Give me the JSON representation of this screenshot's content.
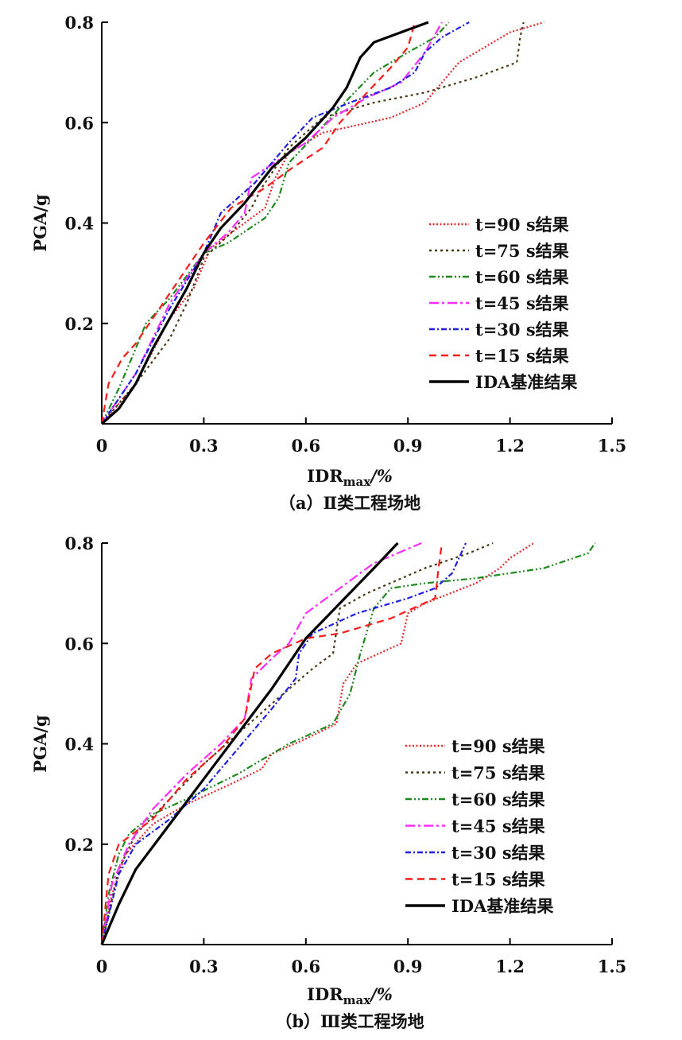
{
  "chart_data": [
    {
      "type": "line",
      "caption": "（a）Ⅱ类工程场地",
      "xlabel_parts": {
        "main": "IDR",
        "sub": "max",
        "unit": "/%"
      },
      "ylabel": "PGA/g",
      "xlim": [
        0,
        1.5
      ],
      "ylim": [
        0,
        0.8
      ],
      "xticks": [
        "0",
        "0.3",
        "0.6",
        "0.9",
        "1.2",
        "1.5"
      ],
      "yticks": [
        "0.2",
        "0.4",
        "0.6",
        "0.8"
      ],
      "grid": false,
      "legend": "right",
      "series": [
        {
          "name": "t=90 s结果",
          "color": "#e8262a",
          "style": "dotted",
          "x": [
            0,
            0.1,
            0.2,
            0.27,
            0.32,
            0.4,
            0.48,
            0.51,
            0.55,
            0.65,
            0.85,
            0.95,
            1.0,
            1.05,
            1.2,
            1.3
          ],
          "y": [
            0,
            0.08,
            0.21,
            0.27,
            0.35,
            0.39,
            0.43,
            0.49,
            0.54,
            0.58,
            0.61,
            0.64,
            0.68,
            0.72,
            0.78,
            0.8
          ]
        },
        {
          "name": "t=75 s结果",
          "color": "#4a3a1a",
          "style": "short-dash",
          "x": [
            0,
            0.1,
            0.2,
            0.25,
            0.3,
            0.38,
            0.44,
            0.47,
            0.55,
            0.65,
            0.8,
            0.95,
            1.1,
            1.22,
            1.23,
            1.24
          ],
          "y": [
            0,
            0.08,
            0.17,
            0.24,
            0.33,
            0.38,
            0.43,
            0.47,
            0.55,
            0.61,
            0.64,
            0.66,
            0.69,
            0.72,
            0.77,
            0.8
          ]
        },
        {
          "name": "t=60 s结果",
          "color": "#1e8a1e",
          "style": "dash-dot-dot",
          "x": [
            0,
            0.05,
            0.1,
            0.13,
            0.2,
            0.3,
            0.37,
            0.48,
            0.52,
            0.55,
            0.62,
            0.7,
            0.8,
            0.9,
            0.98,
            1.02
          ],
          "y": [
            0,
            0.07,
            0.15,
            0.2,
            0.25,
            0.34,
            0.36,
            0.41,
            0.45,
            0.52,
            0.57,
            0.63,
            0.7,
            0.74,
            0.77,
            0.8
          ]
        },
        {
          "name": "t=45 s结果",
          "color": "#ff2cff",
          "style": "long-dash-dot",
          "x": [
            0,
            0.1,
            0.2,
            0.3,
            0.37,
            0.42,
            0.44,
            0.53,
            0.6,
            0.68,
            0.78,
            0.88,
            0.95,
            1.0
          ],
          "y": [
            0,
            0.1,
            0.24,
            0.34,
            0.38,
            0.42,
            0.49,
            0.53,
            0.56,
            0.61,
            0.65,
            0.68,
            0.74,
            0.8
          ]
        },
        {
          "name": "t=30 s结果",
          "color": "#1f1fe6",
          "style": "dash-dot",
          "x": [
            0,
            0.1,
            0.2,
            0.3,
            0.35,
            0.45,
            0.55,
            0.62,
            0.73,
            0.85,
            0.92,
            0.95,
            1.0,
            1.08
          ],
          "y": [
            0,
            0.1,
            0.23,
            0.34,
            0.42,
            0.48,
            0.56,
            0.61,
            0.64,
            0.67,
            0.7,
            0.74,
            0.77,
            0.8
          ]
        },
        {
          "name": "t=15 s结果",
          "color": "#ff1a1a",
          "style": "dashed",
          "x": [
            0,
            0.02,
            0.06,
            0.1,
            0.2,
            0.3,
            0.38,
            0.48,
            0.56,
            0.65,
            0.7,
            0.78,
            0.85,
            0.9,
            0.92
          ],
          "y": [
            0,
            0.08,
            0.13,
            0.16,
            0.26,
            0.36,
            0.43,
            0.47,
            0.51,
            0.55,
            0.6,
            0.66,
            0.71,
            0.75,
            0.8
          ]
        },
        {
          "name": "IDA基准结果",
          "color": "#000000",
          "style": "solid",
          "x": [
            0,
            0.05,
            0.1,
            0.15,
            0.2,
            0.25,
            0.3,
            0.35,
            0.42,
            0.5,
            0.6,
            0.68,
            0.72,
            0.76,
            0.8,
            0.88,
            0.96
          ],
          "y": [
            0,
            0.03,
            0.08,
            0.15,
            0.21,
            0.27,
            0.34,
            0.39,
            0.44,
            0.51,
            0.57,
            0.63,
            0.67,
            0.73,
            0.76,
            0.78,
            0.8
          ]
        }
      ]
    },
    {
      "type": "line",
      "caption": "（b）Ⅲ类工程场地",
      "xlabel_parts": {
        "main": "IDR",
        "sub": "max",
        "unit": "/%"
      },
      "ylabel": "PGA/g",
      "xlim": [
        0,
        1.5
      ],
      "ylim": [
        0,
        0.8
      ],
      "xticks": [
        "0",
        "0.3",
        "0.6",
        "0.9",
        "1.2",
        "1.5"
      ],
      "yticks": [
        "0.2",
        "0.4",
        "0.6",
        "0.8"
      ],
      "grid": false,
      "legend": "right",
      "series": [
        {
          "name": "t=90 s结果",
          "color": "#e8262a",
          "style": "dotted",
          "x": [
            0,
            0.03,
            0.07,
            0.15,
            0.25,
            0.38,
            0.47,
            0.5,
            0.6,
            0.69,
            0.71,
            0.75,
            0.88,
            0.9,
            0.95,
            1.1,
            1.17,
            1.2,
            1.27
          ],
          "y": [
            0,
            0.1,
            0.18,
            0.24,
            0.28,
            0.32,
            0.35,
            0.38,
            0.41,
            0.44,
            0.52,
            0.56,
            0.6,
            0.66,
            0.68,
            0.72,
            0.75,
            0.77,
            0.8
          ]
        },
        {
          "name": "t=75 s结果",
          "color": "#4a3a1a",
          "style": "short-dash",
          "x": [
            0,
            0.05,
            0.1,
            0.2,
            0.3,
            0.4,
            0.5,
            0.62,
            0.68,
            0.7,
            0.78,
            0.95,
            1.08,
            1.15
          ],
          "y": [
            0,
            0.15,
            0.22,
            0.29,
            0.36,
            0.42,
            0.48,
            0.55,
            0.58,
            0.67,
            0.7,
            0.75,
            0.78,
            0.8
          ]
        },
        {
          "name": "t=60 s结果",
          "color": "#1e8a1e",
          "style": "dash-dot-dot",
          "x": [
            0,
            0.02,
            0.05,
            0.08,
            0.15,
            0.25,
            0.4,
            0.55,
            0.68,
            0.73,
            0.76,
            0.8,
            0.85,
            0.95,
            1.1,
            1.3,
            1.43,
            1.45
          ],
          "y": [
            0,
            0.1,
            0.18,
            0.22,
            0.26,
            0.29,
            0.34,
            0.4,
            0.44,
            0.5,
            0.58,
            0.67,
            0.71,
            0.72,
            0.73,
            0.75,
            0.78,
            0.8
          ]
        },
        {
          "name": "t=45 s结果",
          "color": "#ff2cff",
          "style": "long-dash-dot",
          "x": [
            0,
            0.03,
            0.08,
            0.15,
            0.25,
            0.35,
            0.42,
            0.44,
            0.5,
            0.55,
            0.6,
            0.7,
            0.8,
            0.94
          ],
          "y": [
            0,
            0.12,
            0.2,
            0.27,
            0.34,
            0.4,
            0.45,
            0.53,
            0.57,
            0.6,
            0.66,
            0.71,
            0.76,
            0.8
          ]
        },
        {
          "name": "t=30 s结果",
          "color": "#1f1fe6",
          "style": "dash-dot",
          "x": [
            0,
            0.05,
            0.1,
            0.2,
            0.3,
            0.4,
            0.5,
            0.57,
            0.58,
            0.62,
            0.75,
            0.9,
            0.98,
            1.03,
            1.07
          ],
          "y": [
            0,
            0.14,
            0.2,
            0.25,
            0.31,
            0.39,
            0.47,
            0.53,
            0.58,
            0.62,
            0.66,
            0.69,
            0.71,
            0.74,
            0.8
          ]
        },
        {
          "name": "t=15 s结果",
          "color": "#ff1a1a",
          "style": "dashed",
          "x": [
            0,
            0.02,
            0.05,
            0.15,
            0.25,
            0.35,
            0.42,
            0.45,
            0.5,
            0.6,
            0.7,
            0.85,
            0.98,
            0.99,
            1.0
          ],
          "y": [
            0,
            0.14,
            0.2,
            0.25,
            0.33,
            0.39,
            0.45,
            0.55,
            0.58,
            0.61,
            0.62,
            0.65,
            0.69,
            0.75,
            0.8
          ]
        },
        {
          "name": "IDA基准结果",
          "color": "#000000",
          "style": "solid",
          "x": [
            0,
            0.05,
            0.1,
            0.2,
            0.3,
            0.4,
            0.5,
            0.6,
            0.7,
            0.8,
            0.87
          ],
          "y": [
            0,
            0.08,
            0.15,
            0.24,
            0.33,
            0.42,
            0.51,
            0.61,
            0.68,
            0.75,
            0.8
          ]
        }
      ]
    }
  ]
}
